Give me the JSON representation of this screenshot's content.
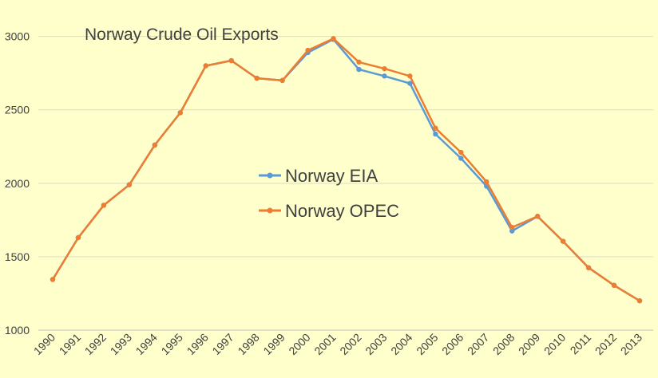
{
  "chart_data": {
    "type": "line",
    "title": "Norway Crude Oil Exports",
    "x": [
      "1990",
      "1991",
      "1992",
      "1993",
      "1994",
      "1995",
      "1996",
      "1997",
      "1998",
      "1999",
      "2000",
      "2001",
      "2002",
      "2003",
      "2004",
      "2005",
      "2006",
      "2007",
      "2008",
      "2009",
      "2010",
      "2011",
      "2012",
      "2013"
    ],
    "yticks": [
      1000,
      1500,
      2000,
      2500,
      3000
    ],
    "ylim": [
      1000,
      3150
    ],
    "grid": true,
    "legend_position": "center",
    "series": [
      {
        "name": "Norway EIA",
        "color": "#5b9bd5",
        "values": [
          1345,
          1630,
          1850,
          1990,
          2260,
          2480,
          2800,
          2835,
          2715,
          2700,
          2890,
          2980,
          2775,
          2730,
          2680,
          2335,
          2170,
          1980,
          1675,
          1775,
          1605,
          1425,
          1305,
          1200
        ]
      },
      {
        "name": "Norway OPEC",
        "color": "#ed7d31",
        "values": [
          1345,
          1630,
          1850,
          1990,
          2260,
          2480,
          2800,
          2835,
          2715,
          2700,
          2905,
          2985,
          2825,
          2780,
          2730,
          2375,
          2210,
          2010,
          1700,
          1775,
          1605,
          1425,
          1305,
          1200
        ]
      }
    ]
  }
}
